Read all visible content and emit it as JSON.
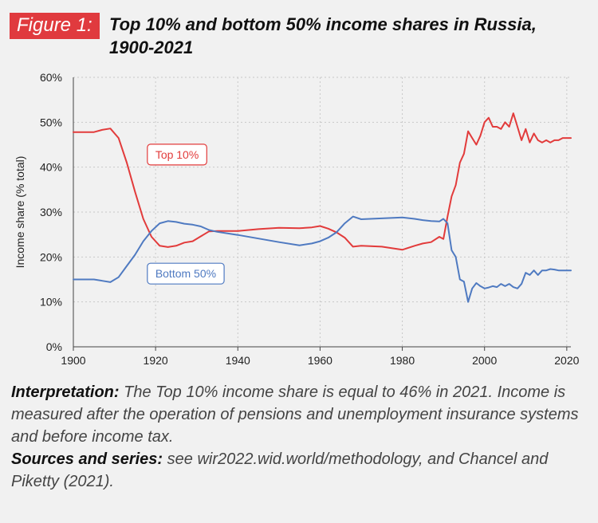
{
  "figure": {
    "badge": "Figure 1:",
    "title_line1": "Top 10% and bottom 50% income shares in Russia,",
    "title_line2": "1900-2021"
  },
  "notes": {
    "interpretation_label": "Interpretation:",
    "interpretation_text": " The Top 10% income share is equal to 46% in 2021. Income is measured after the operation of pensions and unemployment insurance systems and before income tax.",
    "sources_label": "Sources and series:",
    "sources_text": " see wir2022.wid.world/methodology, and Chancel and Piketty (2021)."
  },
  "colors": {
    "top10": "#e23b3b",
    "bottom50": "#4f7ac1",
    "grid": "#c8c8c8",
    "axis": "#444444"
  },
  "chart_data": {
    "type": "line",
    "title": "Top 10% and bottom 50% income shares in Russia, 1900-2021",
    "ylabel": "Income share (% total)",
    "xlabel": "",
    "xlim": [
      1900,
      2021
    ],
    "ylim": [
      0,
      60
    ],
    "x_ticks": [
      1900,
      1920,
      1940,
      1960,
      1980,
      2000,
      2020
    ],
    "y_ticks": [
      0,
      10,
      20,
      30,
      40,
      50,
      60
    ],
    "y_tick_labels": [
      "0%",
      "10%",
      "20%",
      "30%",
      "40%",
      "50%",
      "60%"
    ],
    "grid": true,
    "series": [
      {
        "name": "Top 10%",
        "color": "#e23b3b",
        "label_year": 1918,
        "label_value": 42.8,
        "x": [
          1900,
          1905,
          1907,
          1909,
          1911,
          1913,
          1915,
          1917,
          1919,
          1921,
          1923,
          1925,
          1927,
          1929,
          1931,
          1933,
          1935,
          1940,
          1945,
          1950,
          1955,
          1958,
          1960,
          1962,
          1964,
          1966,
          1968,
          1970,
          1975,
          1980,
          1983,
          1985,
          1987,
          1989,
          1990,
          1991,
          1992,
          1993,
          1994,
          1995,
          1996,
          1997,
          1998,
          1999,
          2000,
          2001,
          2002,
          2003,
          2004,
          2005,
          2006,
          2007,
          2008,
          2009,
          2010,
          2011,
          2012,
          2013,
          2014,
          2015,
          2016,
          2017,
          2018,
          2019,
          2020,
          2021
        ],
        "y": [
          47.8,
          47.8,
          48.3,
          48.6,
          46.5,
          41,
          34.5,
          28.5,
          24.5,
          22.5,
          22.2,
          22.5,
          23.2,
          23.5,
          24.6,
          25.7,
          25.8,
          25.8,
          26.2,
          26.5,
          26.4,
          26.6,
          26.9,
          26.3,
          25.5,
          24.3,
          22.3,
          22.5,
          22.3,
          21.6,
          22.5,
          23,
          23.3,
          24.5,
          24,
          29,
          33.5,
          36,
          41,
          43,
          48,
          46.5,
          45,
          47,
          50,
          51,
          49,
          49,
          48.5,
          50,
          49,
          52,
          49,
          46,
          48.5,
          45.5,
          47.5,
          46,
          45.5,
          46,
          45.5,
          46,
          46,
          46.5,
          46.5,
          46.5
        ]
      },
      {
        "name": "Bottom 50%",
        "color": "#4f7ac1",
        "label_year": 1918,
        "label_value": 16.3,
        "x": [
          1900,
          1905,
          1907,
          1909,
          1911,
          1913,
          1915,
          1917,
          1919,
          1921,
          1923,
          1925,
          1927,
          1929,
          1931,
          1933,
          1935,
          1940,
          1945,
          1950,
          1955,
          1958,
          1960,
          1962,
          1964,
          1966,
          1968,
          1970,
          1975,
          1980,
          1983,
          1985,
          1987,
          1989,
          1990,
          1991,
          1992,
          1993,
          1994,
          1995,
          1996,
          1997,
          1998,
          1999,
          2000,
          2001,
          2002,
          2003,
          2004,
          2005,
          2006,
          2007,
          2008,
          2009,
          2010,
          2011,
          2012,
          2013,
          2014,
          2015,
          2016,
          2017,
          2018,
          2019,
          2020,
          2021
        ],
        "y": [
          15,
          15,
          14.7,
          14.4,
          15.5,
          18,
          20.5,
          23.5,
          25.8,
          27.5,
          28,
          27.8,
          27.4,
          27.2,
          26.8,
          26,
          25.6,
          24.9,
          24.1,
          23.3,
          22.6,
          23,
          23.5,
          24.3,
          25.5,
          27.5,
          29,
          28.4,
          28.6,
          28.8,
          28.5,
          28.2,
          28,
          27.9,
          28.5,
          27.5,
          21.5,
          20,
          15,
          14.5,
          10,
          13,
          14.2,
          13.5,
          13,
          13.2,
          13.5,
          13.3,
          14,
          13.5,
          14,
          13.3,
          13,
          14,
          16.5,
          16,
          17,
          16,
          17,
          17,
          17.3,
          17.2,
          17,
          17,
          17,
          17
        ]
      }
    ]
  }
}
